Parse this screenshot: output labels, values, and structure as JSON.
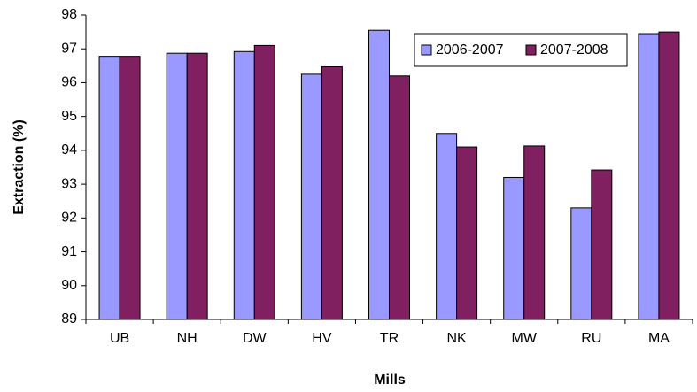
{
  "chart_data": {
    "type": "bar",
    "x_label": "Mills",
    "y_label": "Extraction (%)",
    "categories": [
      "UB",
      "NH",
      "DW",
      "HV",
      "TR",
      "NK",
      "MW",
      "RU",
      "MA"
    ],
    "series": [
      {
        "name": "2006-2007",
        "color": "#9999ff",
        "values": [
          96.78,
          96.87,
          96.92,
          96.25,
          97.55,
          94.5,
          93.2,
          92.3,
          97.45
        ]
      },
      {
        "name": "2007-2008",
        "color": "#802060",
        "values": [
          96.78,
          96.87,
          97.1,
          96.47,
          96.2,
          94.1,
          94.13,
          93.42,
          97.5
        ]
      }
    ],
    "ylim": [
      89,
      98
    ],
    "yticks": [
      89,
      90,
      91,
      92,
      93,
      94,
      95,
      96,
      97,
      98
    ],
    "grid": false,
    "legend": "upper right"
  }
}
